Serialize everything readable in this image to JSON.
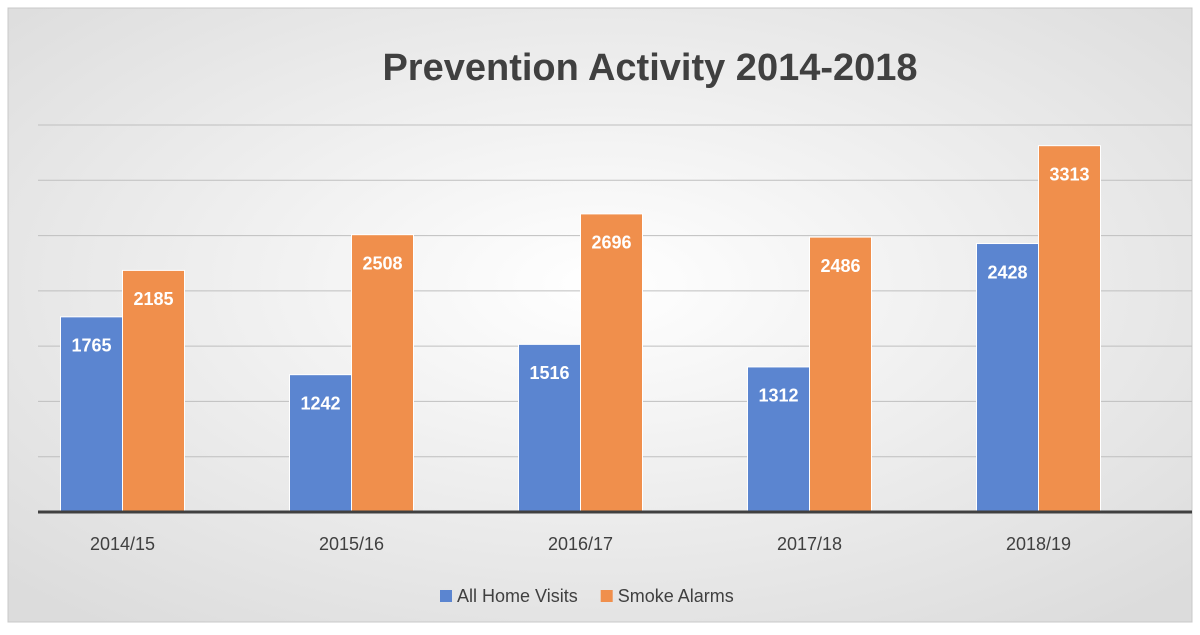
{
  "chart_data": {
    "type": "bar",
    "title": "Prevention Activity 2014-2018",
    "categories": [
      "2014/15",
      "2015/16",
      "2016/17",
      "2017/18",
      "2018/19"
    ],
    "series": [
      {
        "name": "All Home Visits",
        "color": "#5b85d0",
        "values": [
          1765,
          1242,
          1516,
          1312,
          2428
        ]
      },
      {
        "name": "Smoke Alarms",
        "color": "#f08f4c",
        "values": [
          2185,
          2508,
          2696,
          2486,
          3313
        ]
      }
    ],
    "ylim": [
      0,
      3500
    ],
    "yticks": [
      0,
      500,
      1000,
      1500,
      2000,
      2500,
      3000,
      3500
    ],
    "grid": true,
    "legend": "bottom"
  }
}
